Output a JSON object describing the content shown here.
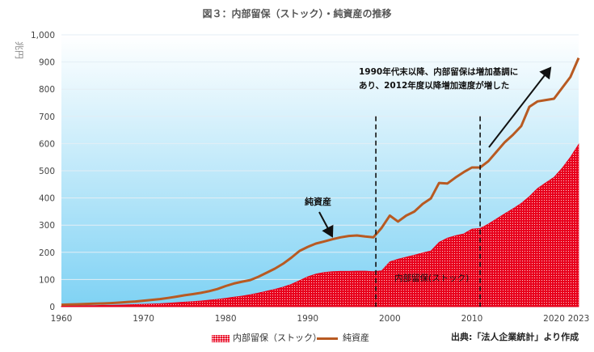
{
  "title": "図３：内部留保（ストック）・純資産の推移",
  "source": "出典:「法人企業統計」より作成",
  "chart_data": {
    "type": "area",
    "ylabel": "兆円",
    "ylim": [
      0,
      1000
    ],
    "yticks": [
      0,
      100,
      200,
      300,
      400,
      500,
      600,
      700,
      800,
      900,
      1000
    ],
    "ytick_labels": [
      "0",
      "100",
      "200",
      "300",
      "400",
      "500",
      "600",
      "700",
      "800",
      "900",
      "1,000"
    ],
    "xlim": [
      1960,
      2023
    ],
    "xticks": [
      1960,
      1970,
      1980,
      1990,
      2000,
      2010,
      2020,
      2023
    ],
    "grid": "horizontal",
    "legend_position": "bottom",
    "x": [
      1960,
      1961,
      1962,
      1963,
      1964,
      1965,
      1966,
      1967,
      1968,
      1969,
      1970,
      1971,
      1972,
      1973,
      1974,
      1975,
      1976,
      1977,
      1978,
      1979,
      1980,
      1981,
      1982,
      1983,
      1984,
      1985,
      1986,
      1987,
      1988,
      1989,
      1990,
      1991,
      1992,
      1993,
      1994,
      1995,
      1996,
      1997,
      1998,
      1999,
      2000,
      2001,
      2002,
      2003,
      2004,
      2005,
      2006,
      2007,
      2008,
      2009,
      2010,
      2011,
      2012,
      2013,
      2014,
      2015,
      2016,
      2017,
      2018,
      2019,
      2020,
      2021,
      2022,
      2023
    ],
    "series": [
      {
        "name": "内部留保（ストック）",
        "style": "area",
        "color": "#e8001c",
        "values": [
          2,
          3,
          3,
          4,
          4,
          5,
          5,
          6,
          7,
          8,
          9,
          10,
          11,
          13,
          15,
          17,
          19,
          21,
          24,
          27,
          31,
          35,
          39,
          44,
          50,
          57,
          64,
          72,
          82,
          96,
          110,
          120,
          126,
          129,
          130,
          130,
          131,
          131,
          129,
          132,
          165,
          175,
          182,
          190,
          198,
          205,
          237,
          252,
          261,
          268,
          285,
          288,
          304,
          323,
          342,
          360,
          380,
          405,
          435,
          456,
          476,
          510,
          550,
          597
        ]
      },
      {
        "name": "純資産",
        "style": "line",
        "color": "#b85a22",
        "values": [
          7,
          8,
          9,
          10,
          11,
          12,
          13,
          15,
          17,
          19,
          22,
          25,
          28,
          32,
          37,
          42,
          46,
          51,
          57,
          65,
          76,
          85,
          92,
          98,
          110,
          125,
          140,
          158,
          180,
          205,
          220,
          232,
          240,
          248,
          255,
          260,
          262,
          258,
          255,
          290,
          335,
          313,
          335,
          350,
          378,
          398,
          455,
          453,
          475,
          495,
          512,
          512,
          535,
          570,
          605,
          632,
          664,
          735,
          755,
          760,
          765,
          805,
          845,
          915
        ]
      }
    ],
    "annotations": [
      {
        "text": "純資産",
        "x": 1993.8,
        "y": 249,
        "arrow": true
      },
      {
        "text": "内部留保(ストック)",
        "x": 2000.5,
        "y": 110
      },
      {
        "text_lines": [
          "1990年代末以降、内部留保は増加基調に",
          "あり、2012年度以降増加速度が増した"
        ],
        "x": 2011.8,
        "y": 640,
        "arrow_to": {
          "x": 2019.5,
          "y": 888
        }
      }
    ],
    "reference_lines": [
      1998.3,
      2011
    ]
  }
}
